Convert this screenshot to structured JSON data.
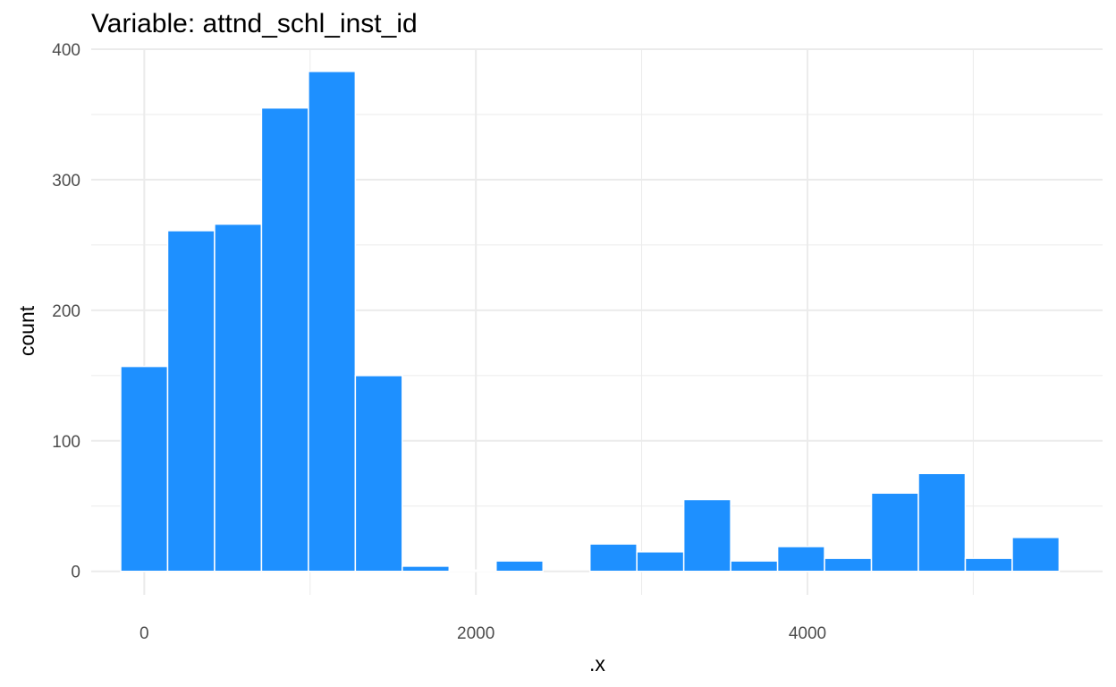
{
  "chart_data": {
    "type": "bar",
    "title": "Variable: attnd_schl_inst_id",
    "xlabel": ".x",
    "ylabel": "count",
    "xlim": [
      -320,
      5780
    ],
    "ylim": [
      -18,
      400
    ],
    "x_ticks": [
      0,
      2000,
      4000
    ],
    "x_minor_ticks": [
      1000,
      3000,
      5000
    ],
    "y_ticks": [
      0,
      100,
      200,
      300,
      400
    ],
    "y_minor_ticks": [
      50,
      150,
      250,
      350
    ],
    "grid": true,
    "bin_width": 283,
    "bars": [
      {
        "x0": -142,
        "x1": 141,
        "count": 157
      },
      {
        "x0": 141,
        "x1": 424,
        "count": 261
      },
      {
        "x0": 424,
        "x1": 707,
        "count": 266
      },
      {
        "x0": 707,
        "x1": 990,
        "count": 355
      },
      {
        "x0": 990,
        "x1": 1273,
        "count": 383
      },
      {
        "x0": 1273,
        "x1": 1556,
        "count": 150
      },
      {
        "x0": 1556,
        "x1": 1839,
        "count": 4
      },
      {
        "x0": 1839,
        "x1": 2122,
        "count": 1
      },
      {
        "x0": 2122,
        "x1": 2405,
        "count": 8
      },
      {
        "x0": 2405,
        "x1": 2688,
        "count": 0
      },
      {
        "x0": 2688,
        "x1": 2971,
        "count": 21
      },
      {
        "x0": 2971,
        "x1": 3254,
        "count": 15
      },
      {
        "x0": 3254,
        "x1": 3537,
        "count": 55
      },
      {
        "x0": 3537,
        "x1": 3820,
        "count": 8
      },
      {
        "x0": 3820,
        "x1": 4103,
        "count": 19
      },
      {
        "x0": 4103,
        "x1": 4386,
        "count": 10
      },
      {
        "x0": 4386,
        "x1": 4669,
        "count": 60
      },
      {
        "x0": 4669,
        "x1": 4952,
        "count": 75
      },
      {
        "x0": 4952,
        "x1": 5235,
        "count": 10
      },
      {
        "x0": 5235,
        "x1": 5518,
        "count": 26
      }
    ],
    "bar_color": "#1e90ff",
    "bar_outline": "#ffffff",
    "grid_color": "#ebebeb"
  }
}
